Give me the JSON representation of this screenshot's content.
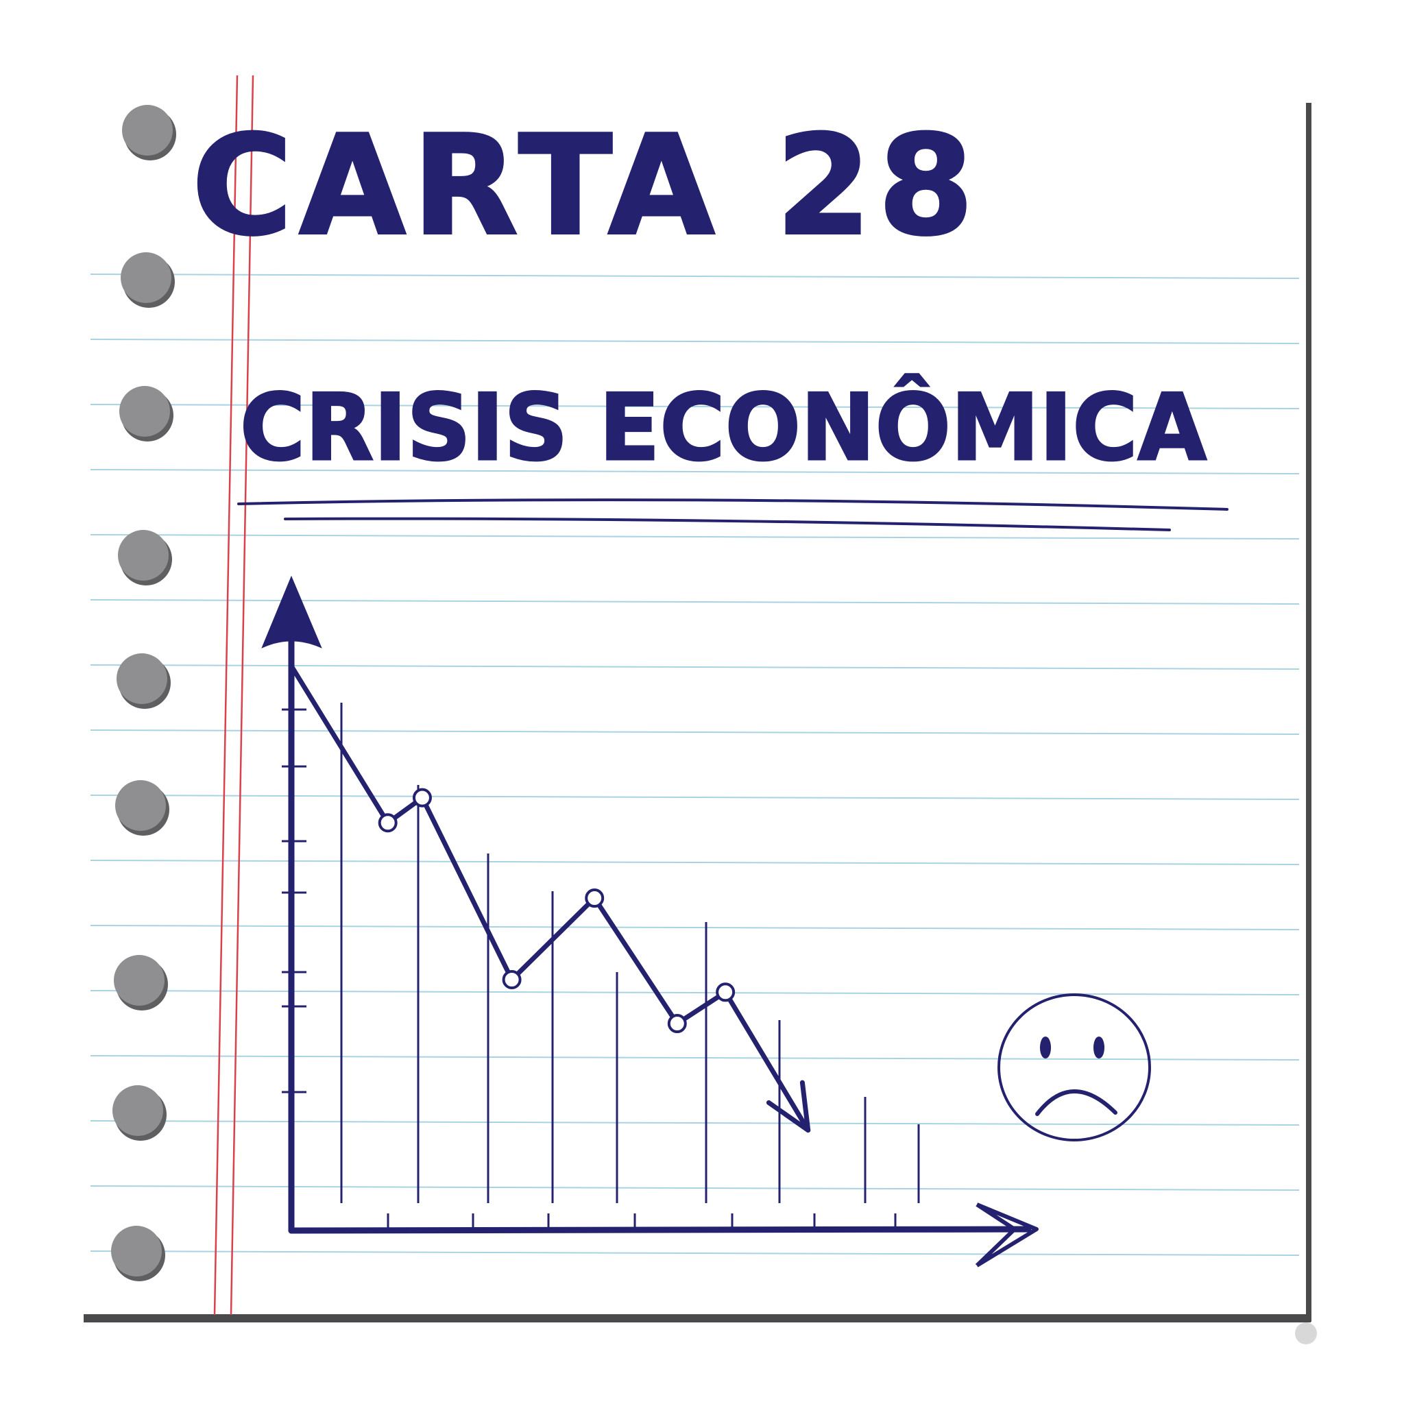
{
  "header": {
    "title": "CARTA 28",
    "subtitle": "CRISIS ECONÔMICA"
  },
  "colors": {
    "ink": "#24216e",
    "rule_line": "#a9d3e3",
    "margin_line": "#d9414d",
    "paper": "#ffffff",
    "paper_shadow": "#4a4a4c",
    "punch_hole": "#8f8f91"
  },
  "decorations": {
    "sad_face": "sad-face-icon",
    "punch_holes": "punch-hole-icon",
    "axis_arrows": "arrow-icon"
  },
  "chart_data": {
    "type": "line",
    "title": "",
    "xlabel": "",
    "ylabel": "",
    "grid": false,
    "legend": "none",
    "x": [
      0,
      1.4,
      1.9,
      3.2,
      4.4,
      5.6,
      6.3,
      7.5
    ],
    "series": [
      {
        "values": [
          9.0,
          6.5,
          6.9,
          4.0,
          5.3,
          3.3,
          3.8,
          1.6
        ]
      }
    ],
    "xlim": [
      0,
      10
    ],
    "ylim": [
      0,
      10
    ],
    "end_arrow": true
  }
}
